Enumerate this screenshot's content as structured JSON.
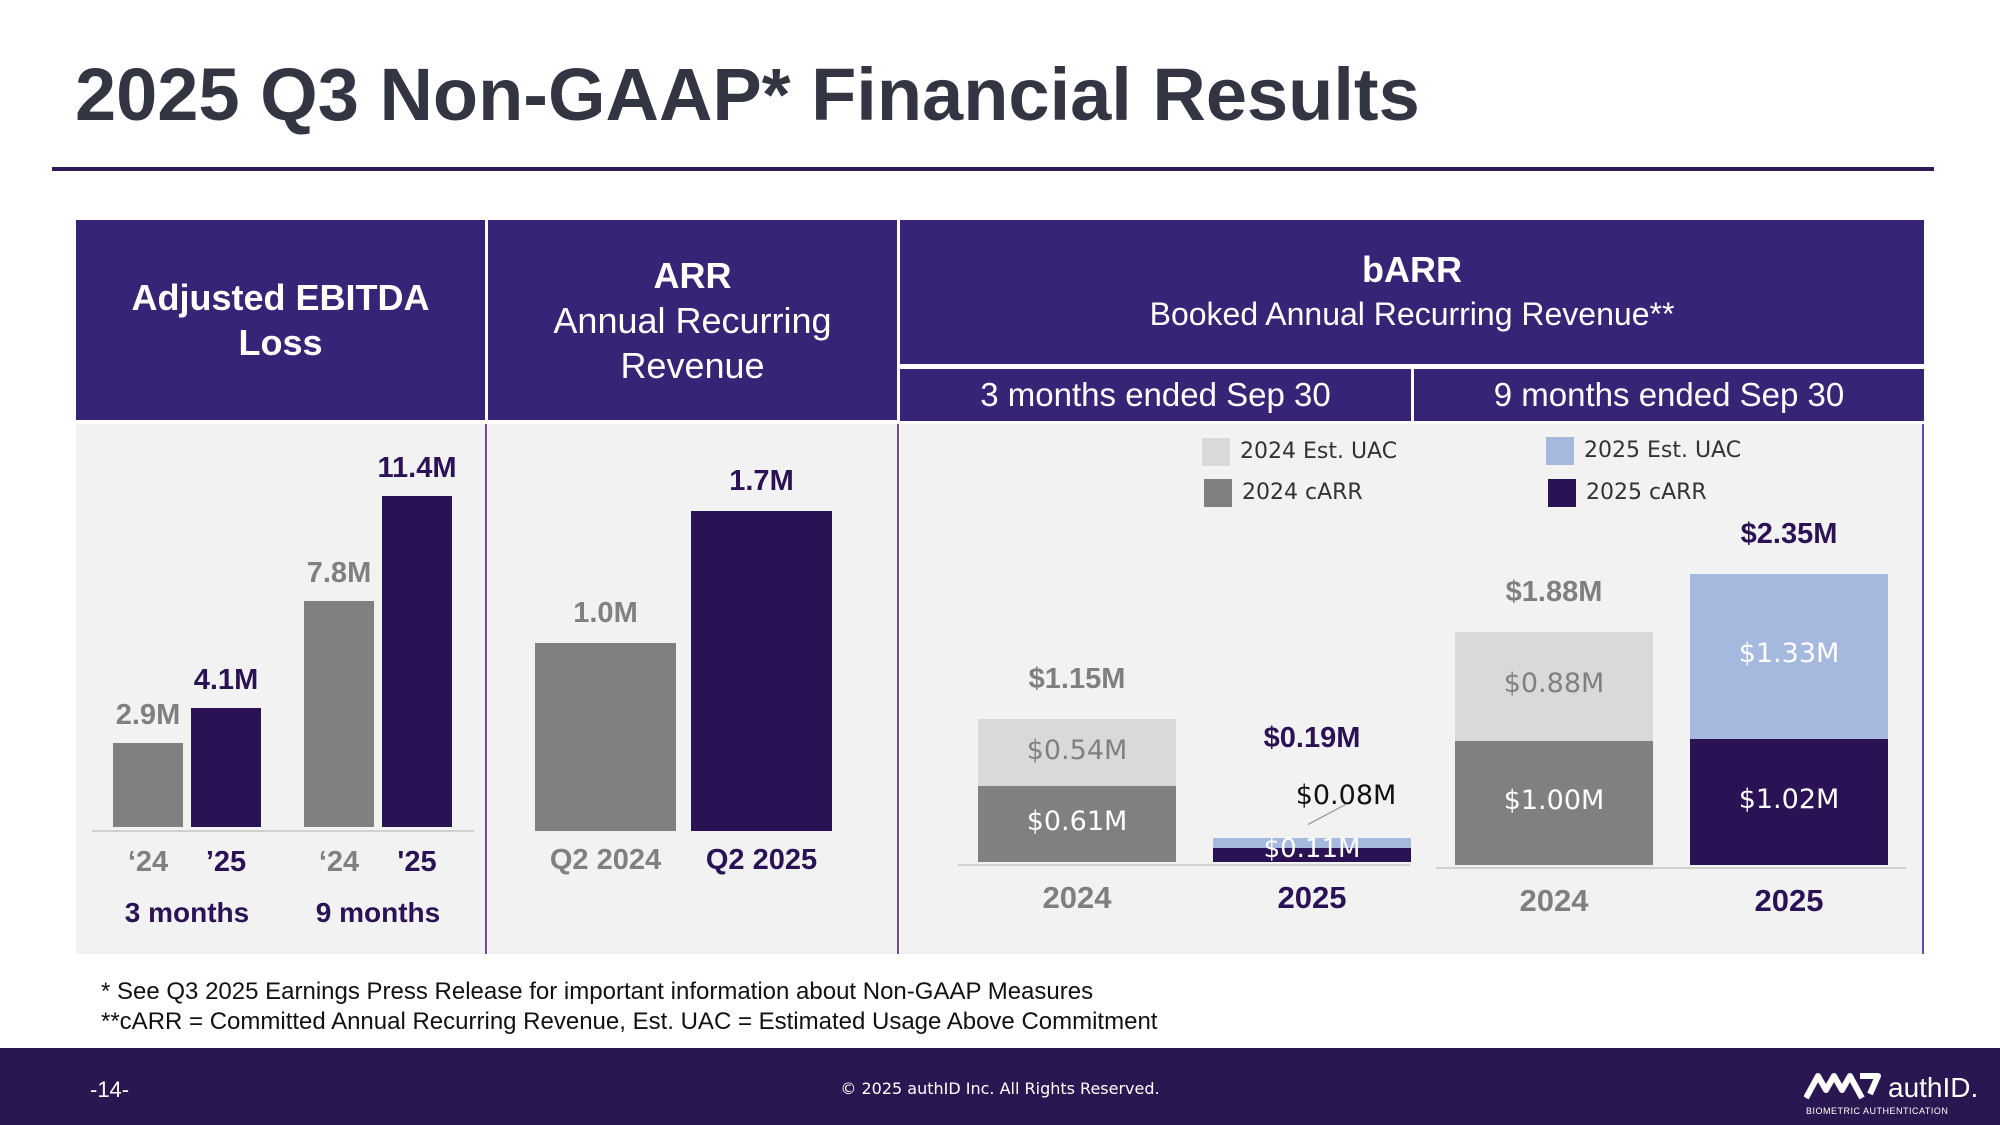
{
  "title": "2025 Q3 Non-GAAP* Financial Results",
  "colors": {
    "header": "#382477",
    "gray": "#808080",
    "purple": "#2b1255",
    "light_gray": "#d9d9d9",
    "light_blue": "#a5b8dd"
  },
  "headers": {
    "ebitda": "Adjusted EBITDA Loss",
    "arr_title": "ARR",
    "arr_sub": "Annual Recurring Revenue",
    "barr_title": "bARR",
    "barr_sub": "Booked Annual Recurring Revenue**",
    "period_3m": "3 months ended Sep 30",
    "period_9m": "9 months ended Sep 30"
  },
  "footnotes": {
    "line1": "* See Q3 2025 Earnings Press Release for important information about Non-GAAP Measures",
    "line2": "**cARR = Committed Annual Recurring Revenue, Est. UAC = Estimated Usage Above Commitment"
  },
  "footer": {
    "page": "-14-",
    "copyright": "© 2025 authID Inc. All Rights Reserved.",
    "logo_text": "authID.",
    "logo_sub": "BIOMETRIC AUTHENTICATION"
  },
  "chart_data": [
    {
      "type": "bar",
      "title": "Adjusted EBITDA Loss",
      "unit": "M",
      "ylim": [
        0,
        12
      ],
      "groups": [
        {
          "name": "3 months",
          "bars": [
            {
              "category": "‘24",
              "value": 2.9,
              "label": "2.9M",
              "color": "gray"
            },
            {
              "category": "’25",
              "value": 4.1,
              "label": "4.1M",
              "color": "purple"
            }
          ]
        },
        {
          "name": "9 months",
          "bars": [
            {
              "category": "‘24",
              "value": 7.8,
              "label": "7.8M",
              "color": "gray"
            },
            {
              "category": "'25",
              "value": 11.4,
              "label": "11.4M",
              "color": "purple"
            }
          ]
        }
      ]
    },
    {
      "type": "bar",
      "title": "ARR Annual Recurring Revenue",
      "unit": "M",
      "ylim": [
        0,
        1.8
      ],
      "bars": [
        {
          "category": "Q2 2024",
          "value": 1.0,
          "label": "1.0M",
          "color": "gray"
        },
        {
          "category": "Q2 2025",
          "value": 1.7,
          "label": "1.7M",
          "color": "purple"
        }
      ]
    },
    {
      "type": "bar",
      "stacked": true,
      "title": "bARR Booked Annual Recurring Revenue**",
      "unit": "$M",
      "ylim": [
        0,
        2.5
      ],
      "legend": [
        {
          "name": "2024 Est. UAC",
          "color": "light_gray"
        },
        {
          "name": "2025 Est. UAC",
          "color": "light_blue"
        },
        {
          "name": "2024 cARR",
          "color": "gray"
        },
        {
          "name": "2025 cARR",
          "color": "purple"
        }
      ],
      "bars": [
        {
          "period": "3 months ended Sep 30",
          "category": "2024",
          "total": 1.15,
          "total_label": "$1.15M",
          "carr": 0.61,
          "carr_label": "$0.61M",
          "uac": 0.54,
          "uac_label": "$0.54M",
          "year": "2024"
        },
        {
          "period": "3 months ended Sep 30",
          "category": "2025",
          "total": 0.19,
          "total_label": "$0.19M",
          "carr": 0.11,
          "carr_label": "$0.11M",
          "uac": 0.08,
          "uac_label": "$0.08M",
          "year": "2025"
        },
        {
          "period": "9 months ended Sep 30",
          "category": "2024",
          "total": 1.88,
          "total_label": "$1.88M",
          "carr": 1.0,
          "carr_label": "$1.00M",
          "uac": 0.88,
          "uac_label": "$0.88M",
          "year": "2024"
        },
        {
          "period": "9 months ended Sep 30",
          "category": "2025",
          "total": 2.35,
          "total_label": "$2.35M",
          "carr": 1.02,
          "carr_label": "$1.02M",
          "uac": 1.33,
          "uac_label": "$1.33M",
          "year": "2025"
        }
      ]
    }
  ]
}
